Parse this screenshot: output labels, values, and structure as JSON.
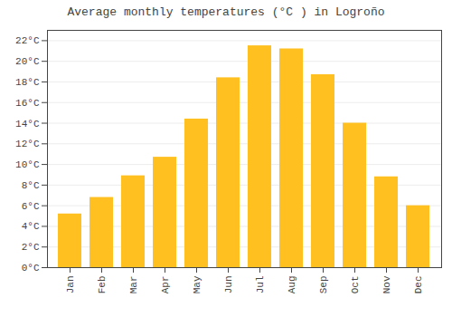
{
  "chart_data": {
    "type": "bar",
    "title": "Average monthly temperatures (°C ) in Logroño",
    "categories": [
      "Jan",
      "Feb",
      "Mar",
      "Apr",
      "May",
      "Jun",
      "Jul",
      "Aug",
      "Sep",
      "Oct",
      "Nov",
      "Dec"
    ],
    "values": [
      5.2,
      6.8,
      8.9,
      10.7,
      14.4,
      18.4,
      21.5,
      21.2,
      18.7,
      14.0,
      8.8,
      6.0
    ],
    "color": "#FFC020",
    "ylim": [
      0,
      23
    ],
    "yticks": [
      {
        "value": 0,
        "label": "0°C"
      },
      {
        "value": 2,
        "label": "2°C"
      },
      {
        "value": 4,
        "label": "4°C"
      },
      {
        "value": 6,
        "label": "6°C"
      },
      {
        "value": 8,
        "label": "8°C"
      },
      {
        "value": 10,
        "label": "10°C"
      },
      {
        "value": 12,
        "label": "12°C"
      },
      {
        "value": 14,
        "label": "14°C"
      },
      {
        "value": 16,
        "label": "16°C"
      },
      {
        "value": 18,
        "label": "18°C"
      },
      {
        "value": 20,
        "label": "20°C"
      },
      {
        "value": 22,
        "label": "22°C"
      }
    ],
    "grid": true
  }
}
